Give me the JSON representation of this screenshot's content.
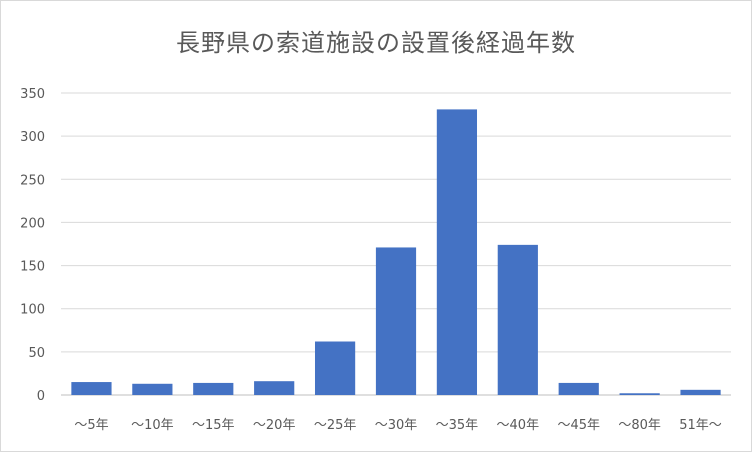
{
  "chart_data": {
    "type": "bar",
    "title": "長野県の索道施設の設置後経過年数",
    "categories": [
      "～5年",
      "～10年",
      "～15年",
      "～20年",
      "～25年",
      "～30年",
      "～35年",
      "～40年",
      "～45年",
      "～80年",
      "51年～"
    ],
    "values": [
      15,
      13,
      14,
      16,
      62,
      171,
      331,
      174,
      14,
      2,
      6
    ],
    "ylim": [
      0,
      350
    ],
    "yticks": [
      0,
      50,
      100,
      150,
      200,
      250,
      300,
      350
    ],
    "grid": true,
    "bar_color": "#4472c4"
  }
}
